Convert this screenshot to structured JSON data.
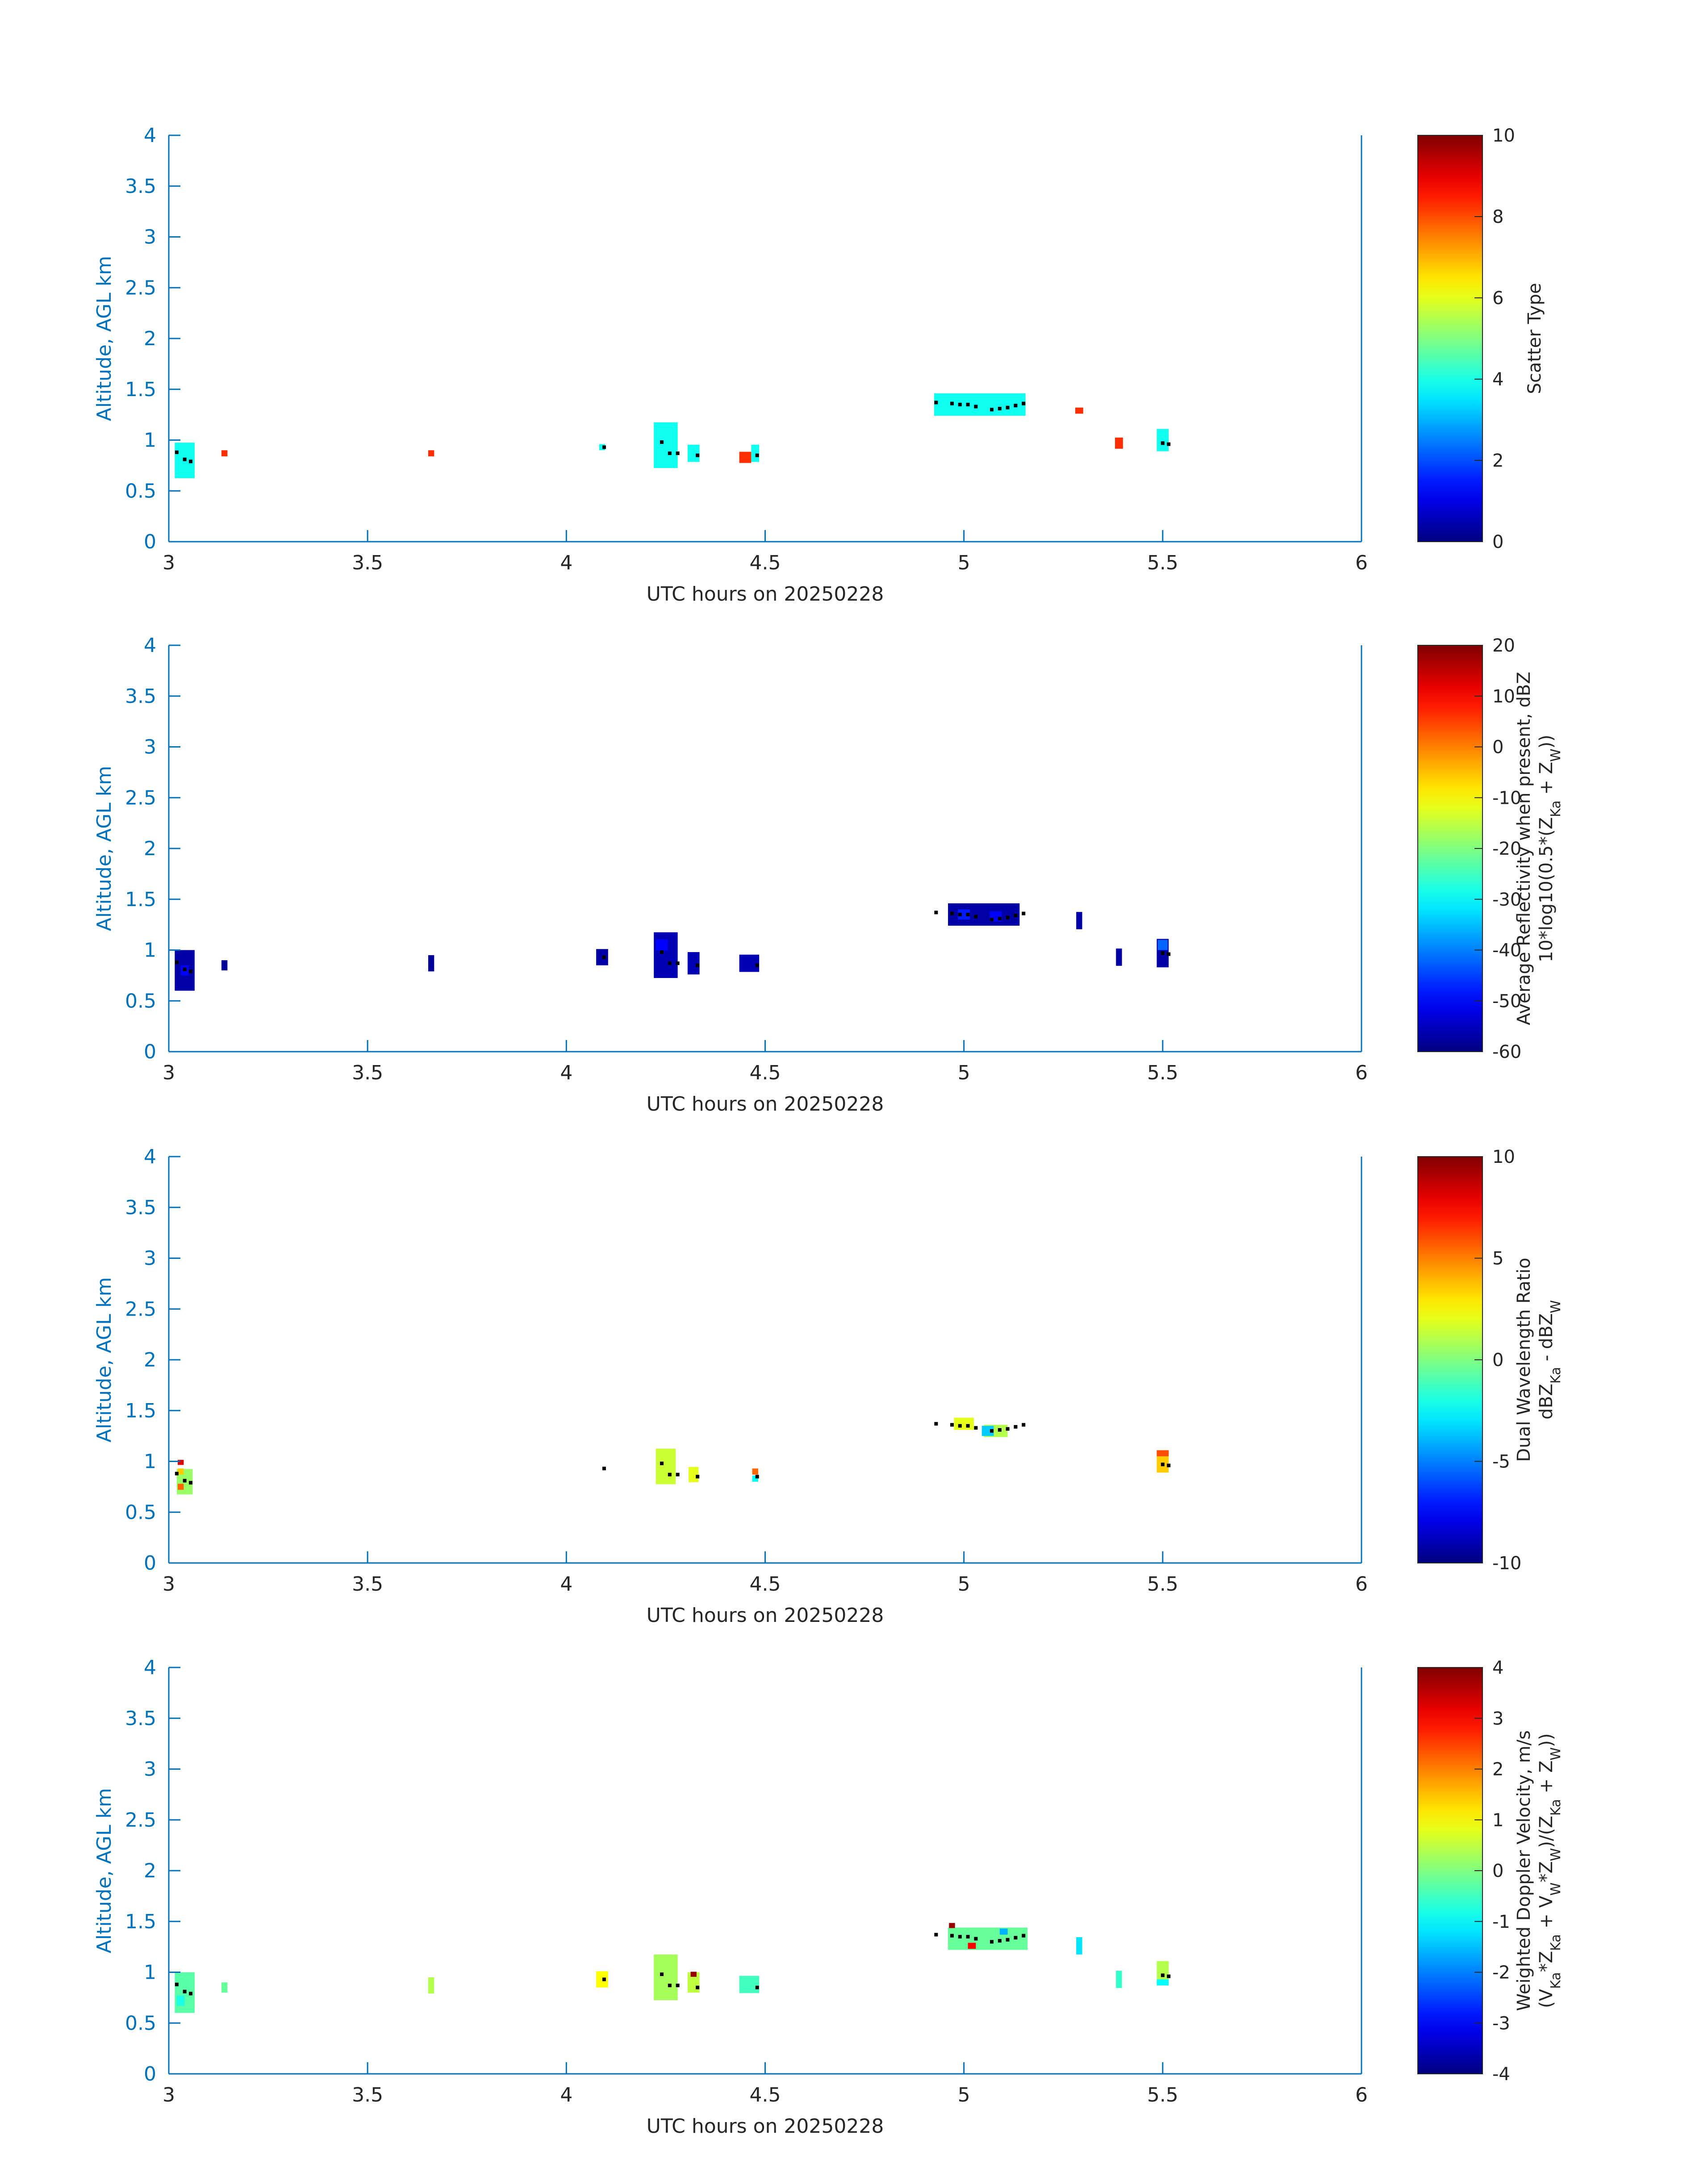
{
  "colors": {
    "axis": "#0072bd",
    "cb_text": "#262626",
    "marker": "#000000"
  },
  "panels": [
    {
      "xlabel": "UTC hours on 20250228",
      "ylabel": "Altitude, AGL km",
      "xticks": [
        "3",
        "3.5",
        "4",
        "4.5",
        "5",
        "5.5",
        "6"
      ],
      "yticks": [
        "0",
        "0.5",
        "1",
        "1.5",
        "2",
        "2.5",
        "3",
        "3.5",
        "4"
      ],
      "colorbar": {
        "ticks": [
          "0",
          "2",
          "4",
          "6",
          "8",
          "10"
        ],
        "label_lines": [
          "Scatter Type"
        ]
      }
    },
    {
      "xlabel": "UTC hours on 20250228",
      "ylabel": "Altitude, AGL km",
      "xticks": [
        "3",
        "3.5",
        "4",
        "4.5",
        "5",
        "5.5",
        "6"
      ],
      "yticks": [
        "0",
        "0.5",
        "1",
        "1.5",
        "2",
        "2.5",
        "3",
        "3.5",
        "4"
      ],
      "colorbar": {
        "ticks": [
          "-60",
          "-50",
          "-40",
          "-30",
          "-20",
          "-10",
          "0",
          "10",
          "20"
        ],
        "label_lines": [
          "Average Reflectivity when present, dBZ",
          "10*log10(0.5*(Z",
          "Ka",
          " + Z",
          "W",
          "))"
        ]
      }
    },
    {
      "xlabel": "UTC hours on 20250228",
      "ylabel": "Altitude, AGL km",
      "xticks": [
        "3",
        "3.5",
        "4",
        "4.5",
        "5",
        "5.5",
        "6"
      ],
      "yticks": [
        "0",
        "0.5",
        "1",
        "1.5",
        "2",
        "2.5",
        "3",
        "3.5",
        "4"
      ],
      "colorbar": {
        "ticks": [
          "-10",
          "-5",
          "0",
          "5",
          "10"
        ],
        "label_lines": [
          "Dual Wavelength Ratio",
          "dBZ",
          "Ka",
          " - dBZ",
          "W"
        ]
      }
    },
    {
      "xlabel": "UTC hours on 20250228",
      "ylabel": "Altitude, AGL km",
      "xticks": [
        "3",
        "3.5",
        "4",
        "4.5",
        "5",
        "5.5",
        "6"
      ],
      "yticks": [
        "0",
        "0.5",
        "1",
        "1.5",
        "2",
        "2.5",
        "3",
        "3.5",
        "4"
      ],
      "colorbar": {
        "ticks": [
          "-4",
          "-3",
          "-2",
          "-1",
          "0",
          "1",
          "2",
          "3",
          "4"
        ],
        "label_lines": [
          "Weighted Doppler Velocity, m/s",
          "(V",
          "Ka",
          "*Z",
          "Ka",
          " + V",
          "W",
          "*Z",
          "W",
          ")/(Z",
          "Ka",
          " + Z",
          "W",
          "))"
        ]
      }
    }
  ],
  "chart_data": [
    {
      "type": "heatmap",
      "xlabel": "UTC hours on 20250228",
      "ylabel": "Altitude, AGL km",
      "xlim": [
        3,
        6
      ],
      "ylim": [
        0,
        4
      ],
      "clabel": "Scatter Type",
      "clim": [
        0,
        10
      ],
      "colormap": "jet",
      "cells": [
        {
          "t": 3.04,
          "z": 0.8,
          "dt": 0.05,
          "dz": 0.35,
          "v": 3.9
        },
        {
          "t": 3.14,
          "z": 0.87,
          "dt": 0.015,
          "dz": 0.06,
          "v": 8.3
        },
        {
          "t": 3.66,
          "z": 0.87,
          "dt": 0.015,
          "dz": 0.06,
          "v": 8.3
        },
        {
          "t": 4.09,
          "z": 0.93,
          "dt": 0.015,
          "dz": 0.06,
          "v": 3.9
        },
        {
          "t": 4.25,
          "z": 0.95,
          "dt": 0.06,
          "dz": 0.45,
          "v": 3.9
        },
        {
          "t": 4.32,
          "z": 0.87,
          "dt": 0.03,
          "dz": 0.17,
          "v": 3.9
        },
        {
          "t": 4.45,
          "z": 0.83,
          "dt": 0.03,
          "dz": 0.11,
          "v": 8.3
        },
        {
          "t": 4.475,
          "z": 0.87,
          "dt": 0.02,
          "dz": 0.17,
          "v": 3.9
        },
        {
          "t": 5.04,
          "z": 1.35,
          "dt": 0.23,
          "dz": 0.22,
          "v": 3.9
        },
        {
          "t": 5.29,
          "z": 1.29,
          "dt": 0.02,
          "dz": 0.06,
          "v": 8.3
        },
        {
          "t": 5.39,
          "z": 0.97,
          "dt": 0.02,
          "dz": 0.11,
          "v": 8.3
        },
        {
          "t": 5.5,
          "z": 1.0,
          "dt": 0.03,
          "dz": 0.22,
          "v": 3.9
        }
      ]
    },
    {
      "type": "heatmap",
      "xlabel": "UTC hours on 20250228",
      "ylabel": "Altitude, AGL km",
      "xlim": [
        3,
        6
      ],
      "ylim": [
        0,
        4
      ],
      "clabel": "Average Reflectivity when present, dBZ 10*log10(0.5*(ZKa + ZW))",
      "clim": [
        -60,
        20
      ],
      "colormap": "jet",
      "cells": [
        {
          "t": 3.04,
          "z": 0.8,
          "dt": 0.05,
          "dz": 0.4,
          "v": -57
        },
        {
          "t": 3.04,
          "z": 0.8,
          "dt": 0.02,
          "dz": 0.1,
          "v": -50
        },
        {
          "t": 3.14,
          "z": 0.85,
          "dt": 0.015,
          "dz": 0.1,
          "v": -58
        },
        {
          "t": 3.66,
          "z": 0.87,
          "dt": 0.015,
          "dz": 0.16,
          "v": -58
        },
        {
          "t": 4.09,
          "z": 0.93,
          "dt": 0.03,
          "dz": 0.16,
          "v": -57
        },
        {
          "t": 4.25,
          "z": 0.95,
          "dt": 0.06,
          "dz": 0.45,
          "v": -56
        },
        {
          "t": 4.24,
          "z": 1.05,
          "dt": 0.03,
          "dz": 0.11,
          "v": -50
        },
        {
          "t": 4.32,
          "z": 0.87,
          "dt": 0.03,
          "dz": 0.22,
          "v": -56
        },
        {
          "t": 4.46,
          "z": 0.87,
          "dt": 0.05,
          "dz": 0.17,
          "v": -56
        },
        {
          "t": 5.05,
          "z": 1.35,
          "dt": 0.18,
          "dz": 0.22,
          "v": -57
        },
        {
          "t": 5.0,
          "z": 1.35,
          "dt": 0.03,
          "dz": 0.1,
          "v": -48
        },
        {
          "t": 5.08,
          "z": 1.33,
          "dt": 0.03,
          "dz": 0.1,
          "v": -50
        },
        {
          "t": 5.29,
          "z": 1.29,
          "dt": 0.015,
          "dz": 0.17,
          "v": -57
        },
        {
          "t": 5.39,
          "z": 0.93,
          "dt": 0.015,
          "dz": 0.17,
          "v": -57
        },
        {
          "t": 5.5,
          "z": 0.97,
          "dt": 0.03,
          "dz": 0.28,
          "v": -57
        },
        {
          "t": 5.5,
          "z": 1.05,
          "dt": 0.025,
          "dz": 0.1,
          "v": -42
        }
      ]
    },
    {
      "type": "heatmap",
      "xlabel": "UTC hours on 20250228",
      "ylabel": "Altitude, AGL km",
      "xlim": [
        3,
        6
      ],
      "ylim": [
        0,
        4
      ],
      "clabel": "Dual Wavelength Ratio dBZKa - dBZW",
      "clim": [
        -10,
        10
      ],
      "colormap": "jet",
      "cells": [
        {
          "t": 3.04,
          "z": 0.8,
          "dt": 0.04,
          "dz": 0.25,
          "v": 0.5
        },
        {
          "t": 3.03,
          "z": 0.75,
          "dt": 0.015,
          "dz": 0.06,
          "v": 5.5
        },
        {
          "t": 3.03,
          "z": 0.99,
          "dt": 0.015,
          "dz": 0.05,
          "v": 8
        },
        {
          "t": 3.03,
          "z": 0.9,
          "dt": 0.015,
          "dz": 0.06,
          "v": 3.5
        },
        {
          "t": 4.25,
          "z": 0.95,
          "dt": 0.05,
          "dz": 0.35,
          "v": 1.5
        },
        {
          "t": 4.32,
          "z": 0.87,
          "dt": 0.025,
          "dz": 0.15,
          "v": 2
        },
        {
          "t": 4.475,
          "z": 0.9,
          "dt": 0.015,
          "dz": 0.06,
          "v": 5.5
        },
        {
          "t": 4.475,
          "z": 0.83,
          "dt": 0.015,
          "dz": 0.06,
          "v": -2.5
        },
        {
          "t": 5.0,
          "z": 1.37,
          "dt": 0.05,
          "dz": 0.12,
          "v": 2
        },
        {
          "t": 5.08,
          "z": 1.3,
          "dt": 0.06,
          "dz": 0.12,
          "v": 1
        },
        {
          "t": 5.06,
          "z": 1.3,
          "dt": 0.03,
          "dz": 0.1,
          "v": -3.5
        },
        {
          "t": 5.5,
          "z": 1.0,
          "dt": 0.03,
          "dz": 0.22,
          "v": 3.5
        },
        {
          "t": 5.5,
          "z": 1.08,
          "dt": 0.03,
          "dz": 0.06,
          "v": 6
        }
      ]
    },
    {
      "type": "heatmap",
      "xlabel": "UTC hours on 20250228",
      "ylabel": "Altitude, AGL km",
      "xlim": [
        3,
        6
      ],
      "ylim": [
        0,
        4
      ],
      "clabel": "Weighted Doppler Velocity, m/s (VKa*ZKa + VW*ZW)/(ZKa + ZW))",
      "clim": [
        -4,
        4
      ],
      "colormap": "jet",
      "cells": [
        {
          "t": 3.04,
          "z": 0.8,
          "dt": 0.05,
          "dz": 0.4,
          "v": -0.3
        },
        {
          "t": 3.03,
          "z": 0.72,
          "dt": 0.02,
          "dz": 0.1,
          "v": -0.8
        },
        {
          "t": 3.14,
          "z": 0.85,
          "dt": 0.015,
          "dz": 0.1,
          "v": -0.2
        },
        {
          "t": 3.66,
          "z": 0.87,
          "dt": 0.015,
          "dz": 0.16,
          "v": 0.4
        },
        {
          "t": 4.09,
          "z": 0.93,
          "dt": 0.03,
          "dz": 0.16,
          "v": 1.0
        },
        {
          "t": 4.25,
          "z": 0.95,
          "dt": 0.06,
          "dz": 0.45,
          "v": 0.3
        },
        {
          "t": 4.32,
          "z": 0.9,
          "dt": 0.03,
          "dz": 0.2,
          "v": 0.5
        },
        {
          "t": 4.32,
          "z": 0.98,
          "dt": 0.015,
          "dz": 0.05,
          "v": 3.8
        },
        {
          "t": 4.46,
          "z": 0.88,
          "dt": 0.05,
          "dz": 0.17,
          "v": -0.5
        },
        {
          "t": 5.06,
          "z": 1.33,
          "dt": 0.2,
          "dz": 0.22,
          "v": -0.2
        },
        {
          "t": 4.97,
          "z": 1.46,
          "dt": 0.015,
          "dz": 0.05,
          "v": 3.8
        },
        {
          "t": 5.02,
          "z": 1.26,
          "dt": 0.02,
          "dz": 0.06,
          "v": 3.0
        },
        {
          "t": 5.1,
          "z": 1.4,
          "dt": 0.02,
          "dz": 0.06,
          "v": -1.6
        },
        {
          "t": 5.29,
          "z": 1.26,
          "dt": 0.015,
          "dz": 0.17,
          "v": -1.2
        },
        {
          "t": 5.39,
          "z": 0.93,
          "dt": 0.015,
          "dz": 0.17,
          "v": -0.6
        },
        {
          "t": 5.5,
          "z": 1.0,
          "dt": 0.03,
          "dz": 0.22,
          "v": 0.4
        },
        {
          "t": 5.5,
          "z": 0.9,
          "dt": 0.03,
          "dz": 0.06,
          "v": -1.0
        }
      ]
    }
  ],
  "markers": [
    {
      "t": 3.02,
      "z": 0.88
    },
    {
      "t": 3.04,
      "z": 0.81
    },
    {
      "t": 3.055,
      "z": 0.79
    },
    {
      "t": 4.095,
      "z": 0.93
    },
    {
      "t": 4.24,
      "z": 0.98
    },
    {
      "t": 4.26,
      "z": 0.87
    },
    {
      "t": 4.28,
      "z": 0.87
    },
    {
      "t": 4.33,
      "z": 0.85
    },
    {
      "t": 4.48,
      "z": 0.85
    },
    {
      "t": 4.93,
      "z": 1.37
    },
    {
      "t": 4.97,
      "z": 1.36
    },
    {
      "t": 4.99,
      "z": 1.35
    },
    {
      "t": 5.01,
      "z": 1.35
    },
    {
      "t": 5.03,
      "z": 1.33
    },
    {
      "t": 5.07,
      "z": 1.3
    },
    {
      "t": 5.09,
      "z": 1.31
    },
    {
      "t": 5.11,
      "z": 1.32
    },
    {
      "t": 5.13,
      "z": 1.34
    },
    {
      "t": 5.15,
      "z": 1.36
    },
    {
      "t": 5.5,
      "z": 0.97
    },
    {
      "t": 5.515,
      "z": 0.96
    }
  ]
}
